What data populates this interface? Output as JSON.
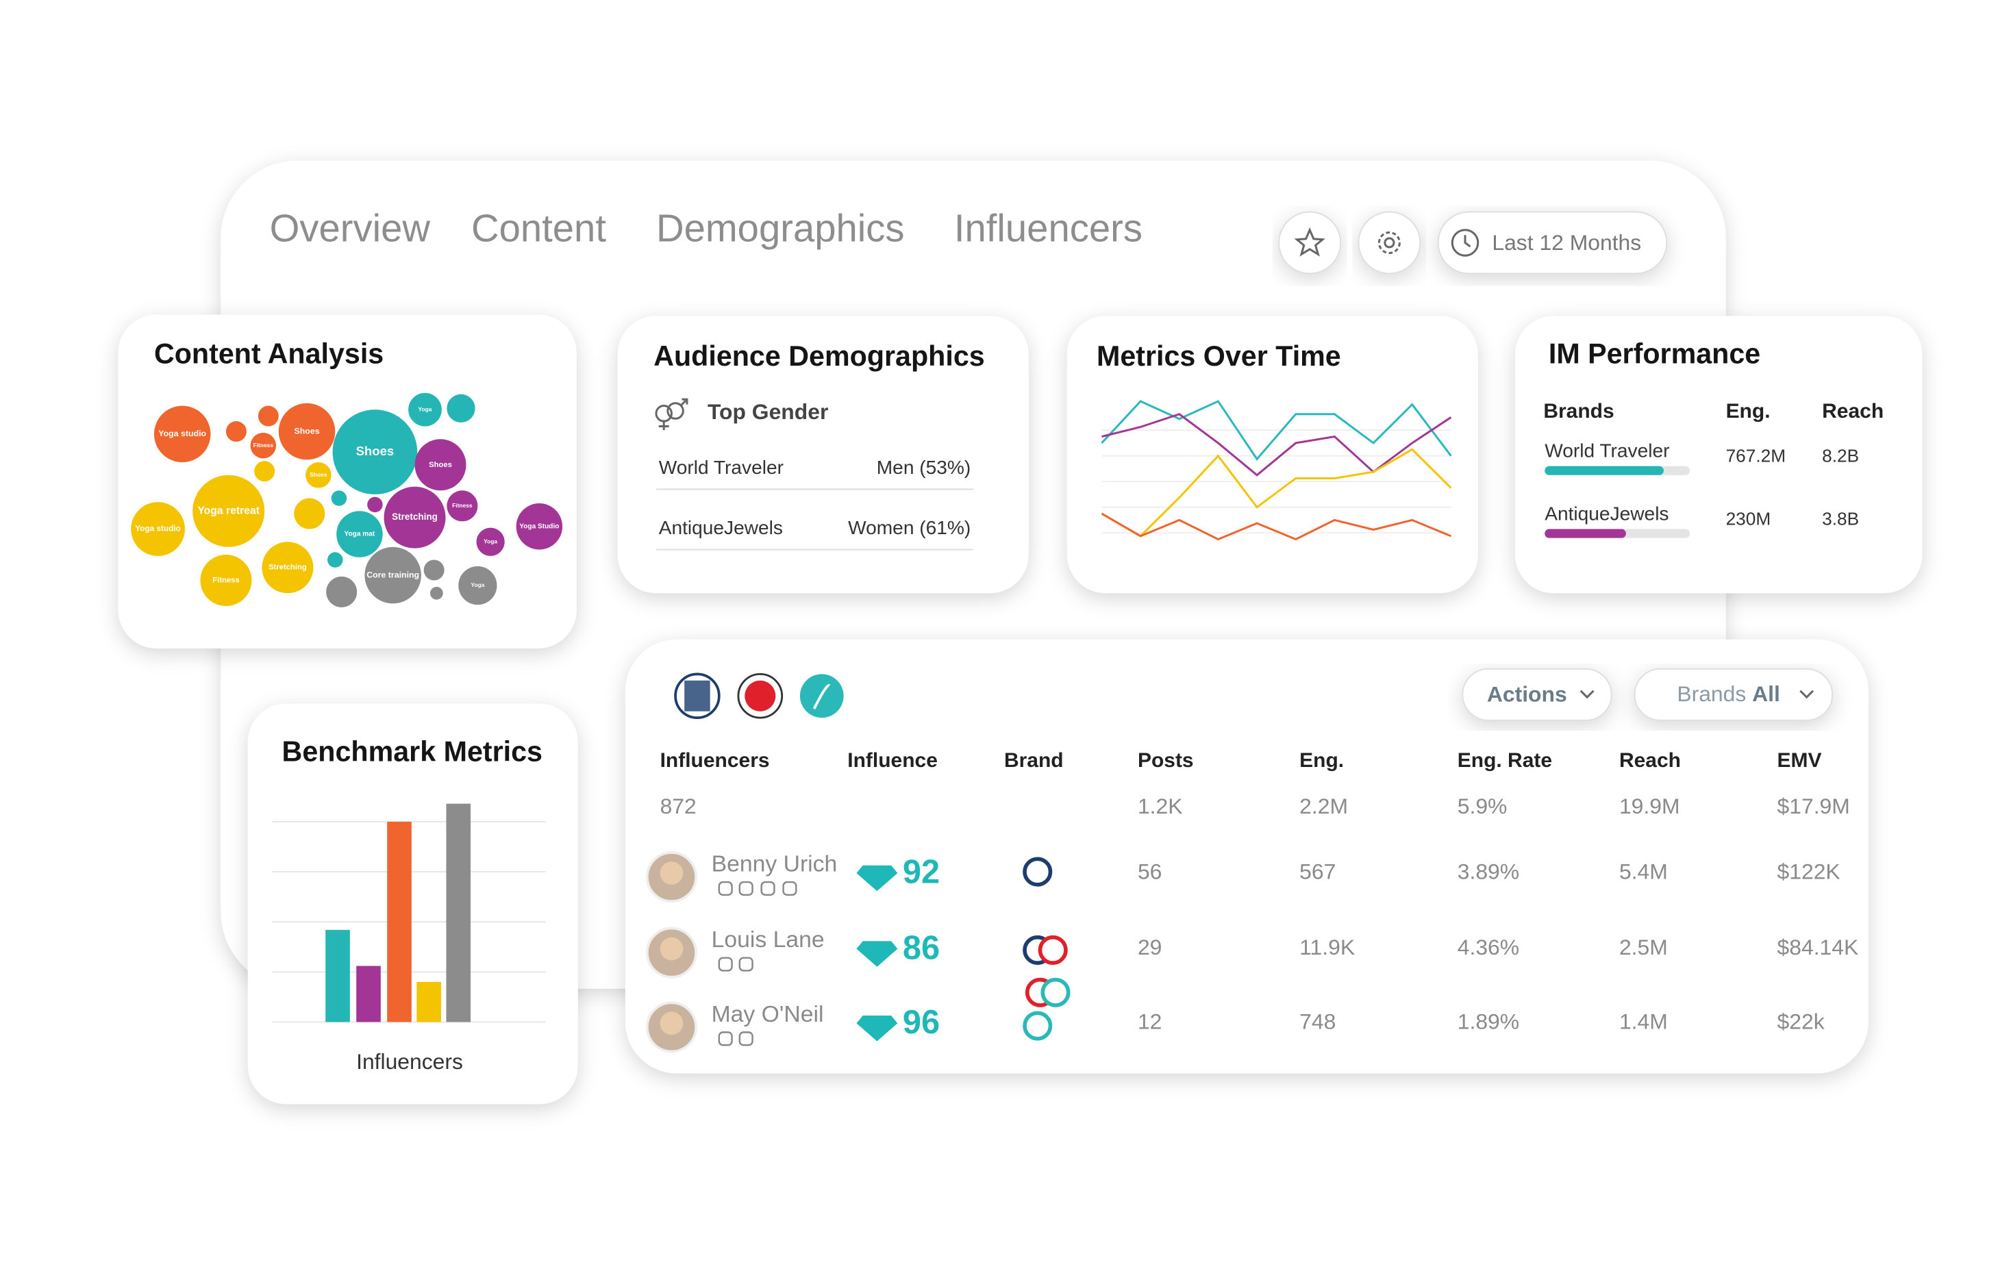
{
  "nav": {
    "tabs": [
      "Overview",
      "Content",
      "Demographics",
      "Influencers"
    ],
    "date_range": "Last 12 Months"
  },
  "chart_data": [
    {
      "type": "bubble",
      "title": "Content Analysis",
      "bubbles": [
        {
          "label": "Yoga studio",
          "value": 22,
          "color": "#f0642d"
        },
        {
          "label": null,
          "value": 8,
          "color": "#f0642d"
        },
        {
          "label": null,
          "value": 8,
          "color": "#f0642d"
        },
        {
          "label": "Fitness",
          "value": 10,
          "color": "#f0642d"
        },
        {
          "label": "Shoes",
          "value": 22,
          "color": "#f0642d"
        },
        {
          "label": "Shoes",
          "value": 33,
          "color": "#25b5b5"
        },
        {
          "label": "Yoga",
          "value": 13,
          "color": "#25b5b5"
        },
        {
          "label": null,
          "value": 11,
          "color": "#25b5b5"
        },
        {
          "label": "Shoes",
          "value": 20,
          "color": "#a33597"
        },
        {
          "label": "Shoes",
          "value": 10,
          "color": "#f5c400"
        },
        {
          "label": null,
          "value": 8,
          "color": "#f5c400"
        },
        {
          "label": "Yoga retreat",
          "value": 28,
          "color": "#f5c400"
        },
        {
          "label": "Yoga studio",
          "value": 21,
          "color": "#f5c400"
        },
        {
          "label": null,
          "value": 12,
          "color": "#f5c400"
        },
        {
          "label": null,
          "value": 6,
          "color": "#25b5b5"
        },
        {
          "label": "Yoga mat",
          "value": 18,
          "color": "#25b5b5"
        },
        {
          "label": "Stretching",
          "value": 24,
          "color": "#a33597"
        },
        {
          "label": "Fitness",
          "value": 12,
          "color": "#a33597"
        },
        {
          "label": "Yoga Studio",
          "value": 18,
          "color": "#a33597"
        },
        {
          "label": "Yoga",
          "value": 11,
          "color": "#a33597"
        },
        {
          "label": "Stretching",
          "value": 20,
          "color": "#f5c400"
        },
        {
          "label": "Fitness",
          "value": 20,
          "color": "#f5c400"
        },
        {
          "label": null,
          "value": 6,
          "color": "#25b5b5"
        },
        {
          "label": "Core training",
          "value": 22,
          "color": "#8c8c8c"
        },
        {
          "label": null,
          "value": 12,
          "color": "#8c8c8c"
        },
        {
          "label": null,
          "value": 8,
          "color": "#8c8c8c"
        },
        {
          "label": null,
          "value": 5,
          "color": "#8c8c8c"
        },
        {
          "label": "Yoga",
          "value": 15,
          "color": "#8c8c8c"
        },
        {
          "label": null,
          "value": 6,
          "color": "#a33597"
        }
      ]
    },
    {
      "type": "line",
      "title": "Metrics Over Time",
      "categories": [
        null,
        null,
        null,
        null,
        null,
        null,
        null,
        null,
        null,
        null
      ],
      "ylim": [
        0,
        100
      ],
      "series": [
        {
          "color": "#2bb8c0",
          "values": [
            68,
            94,
            83,
            94,
            58,
            86,
            86,
            68,
            92,
            60
          ]
        },
        {
          "color": "#a33597",
          "values": [
            72,
            78,
            86,
            68,
            48,
            68,
            72,
            50,
            68,
            84
          ]
        },
        {
          "color": "#f5c400",
          "values": [
            24,
            10,
            34,
            60,
            28,
            46,
            46,
            50,
            64,
            40
          ]
        },
        {
          "color": "#f0642d",
          "values": [
            24,
            10,
            20,
            8,
            18,
            8,
            20,
            14,
            20,
            10
          ]
        }
      ]
    },
    {
      "type": "bar",
      "title": "Benchmark Metrics",
      "x_label": "Influencers",
      "categories": [
        null,
        null,
        null,
        null,
        null
      ],
      "values": [
        46,
        28,
        100,
        20,
        109
      ],
      "colors": [
        "#25b5b5",
        "#a33597",
        "#f0642d",
        "#f5c400",
        "#8c8c8c"
      ],
      "ylim": [
        0,
        110
      ]
    }
  ],
  "audience": {
    "title": "Audience Demographics",
    "subtitle": "Top Gender",
    "rows": [
      [
        "World Traveler",
        "Men (53%)"
      ],
      [
        "AntiqueJewels",
        "Women (61%)"
      ]
    ]
  },
  "im_performance": {
    "title": "IM Performance",
    "columns": [
      "Brands",
      "Eng.",
      "Reach"
    ],
    "rows": [
      {
        "brand": "World Traveler",
        "eng": "767.2M",
        "reach": "8.2B",
        "progress": 82,
        "color": "#25b5b5"
      },
      {
        "brand": "AntiqueJewels",
        "eng": "230M",
        "reach": "3.8B",
        "progress": 56,
        "color": "#a33597"
      }
    ]
  },
  "table": {
    "actions": "Actions",
    "brand_filter": {
      "label": "Brands",
      "value": "All"
    },
    "columns": [
      "Influencers",
      "Influence",
      "Brand",
      "Posts",
      "Eng.",
      "Eng. Rate",
      "Reach",
      "EMV"
    ],
    "totals": {
      "influencers": "872",
      "posts": "1.2K",
      "eng": "2.2M",
      "eng_rate": "5.9%",
      "reach": "19.9M",
      "emv": "$17.9M"
    },
    "rows": [
      {
        "name": "Benny Urich",
        "influence": 92,
        "posts": 56,
        "eng": 567,
        "eng_rate": "3.89%",
        "reach": "5.4M",
        "emv": "$122K"
      },
      {
        "name": "Louis Lane",
        "influence": 86,
        "posts": 29,
        "eng": "11.9K",
        "eng_rate": "4.36%",
        "reach": "2.5M",
        "emv": "$84.14K"
      },
      {
        "name": "May O'Neil",
        "influence": 96,
        "posts": 12,
        "eng": 748,
        "eng_rate": "1.89%",
        "reach": "1.4M",
        "emv": "$22k"
      }
    ]
  }
}
